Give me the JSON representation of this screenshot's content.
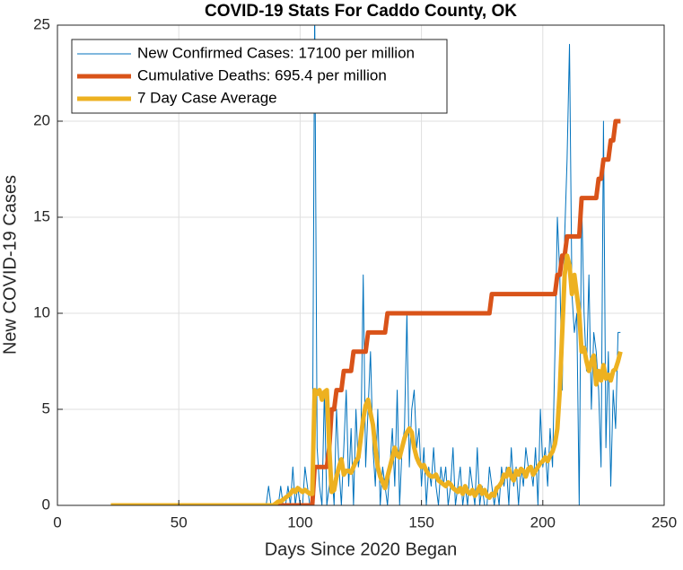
{
  "chart_data": {
    "type": "line",
    "title": "COVID-19 Stats For Caddo County, OK",
    "xlabel": "Days Since 2020 Began",
    "ylabel": "New COVID-19 Cases",
    "xlim": [
      0,
      250
    ],
    "xticks": [
      0,
      50,
      100,
      150,
      200,
      250
    ],
    "ylim": [
      0,
      25
    ],
    "yticks": [
      0,
      5,
      10,
      15,
      20,
      25
    ],
    "grid": true,
    "legend": "upper left",
    "x": [
      22,
      23,
      24,
      25,
      26,
      27,
      28,
      29,
      30,
      31,
      32,
      33,
      34,
      35,
      36,
      37,
      38,
      39,
      40,
      41,
      42,
      43,
      44,
      45,
      46,
      47,
      48,
      49,
      50,
      51,
      52,
      53,
      54,
      55,
      56,
      57,
      58,
      59,
      60,
      61,
      62,
      63,
      64,
      65,
      66,
      67,
      68,
      69,
      70,
      71,
      72,
      73,
      74,
      75,
      76,
      77,
      78,
      79,
      80,
      81,
      82,
      83,
      84,
      85,
      86,
      87,
      88,
      89,
      90,
      91,
      92,
      93,
      94,
      95,
      96,
      97,
      98,
      99,
      100,
      101,
      102,
      103,
      104,
      105,
      106,
      107,
      108,
      109,
      110,
      111,
      112,
      113,
      114,
      115,
      116,
      117,
      118,
      119,
      120,
      121,
      122,
      123,
      124,
      125,
      126,
      127,
      128,
      129,
      130,
      131,
      132,
      133,
      134,
      135,
      136,
      137,
      138,
      139,
      140,
      141,
      142,
      143,
      144,
      145,
      146,
      147,
      148,
      149,
      150,
      151,
      152,
      153,
      154,
      155,
      156,
      157,
      158,
      159,
      160,
      161,
      162,
      163,
      164,
      165,
      166,
      167,
      168,
      169,
      170,
      171,
      172,
      173,
      174,
      175,
      176,
      177,
      178,
      179,
      180,
      181,
      182,
      183,
      184,
      185,
      186,
      187,
      188,
      189,
      190,
      191,
      192,
      193,
      194,
      195,
      196,
      197,
      198,
      199,
      200,
      201,
      202,
      203,
      204,
      205,
      206,
      207,
      208,
      209,
      210,
      211,
      212,
      213,
      214,
      215,
      216,
      217,
      218,
      219,
      220,
      221,
      222,
      223,
      224,
      225,
      226,
      227,
      228,
      229,
      230,
      231,
      232
    ],
    "series": [
      {
        "name": "New Confirmed Cases: 17100 per million",
        "color": "#0072BD",
        "width": 1,
        "values": [
          0,
          0,
          0,
          0,
          0,
          0,
          0,
          0,
          0,
          0,
          0,
          0,
          0,
          0,
          0,
          0,
          0,
          0,
          0,
          0,
          0,
          0,
          0,
          0,
          0,
          0,
          0,
          0,
          0,
          0,
          0,
          0,
          0,
          0,
          0,
          0,
          0,
          0,
          0,
          0,
          0,
          0,
          0,
          0,
          0,
          0,
          0,
          0,
          0,
          0,
          0,
          0,
          0,
          0,
          0,
          0,
          0,
          0,
          0,
          0,
          0,
          0,
          0,
          0,
          0,
          1,
          0,
          0,
          0,
          0,
          1,
          0,
          0,
          1,
          0,
          2,
          0,
          1,
          0,
          0,
          2,
          1,
          0,
          0,
          26,
          3,
          1,
          0,
          6,
          0,
          1,
          2,
          0,
          5,
          2,
          0,
          3,
          6,
          1,
          4,
          0,
          5,
          2,
          3,
          12,
          2,
          5,
          8,
          3,
          1,
          5,
          0,
          2,
          1,
          0,
          2,
          4,
          1,
          6,
          0,
          3,
          4,
          10,
          2,
          5,
          6,
          3,
          4,
          1,
          3,
          0,
          2,
          1,
          3,
          1,
          0,
          2,
          1,
          2,
          0,
          1,
          3,
          0,
          1,
          2,
          0,
          1,
          0,
          2,
          1,
          0,
          3,
          0,
          1,
          0,
          0,
          2,
          1,
          0,
          1,
          0,
          2,
          1,
          2,
          0,
          3,
          1,
          2,
          0,
          2,
          1,
          3,
          2,
          2,
          1,
          3,
          0,
          5,
          2,
          3,
          1,
          4,
          2,
          8,
          15,
          12,
          6,
          14,
          18,
          24,
          11,
          9,
          10,
          0,
          16,
          10,
          7,
          12,
          5,
          9,
          8,
          6,
          2,
          20,
          3,
          8,
          1,
          6,
          4,
          9,
          9
        ]
      },
      {
        "name": "Cumulative Deaths: 695.4 per million",
        "color": "#D95319",
        "width": 5,
        "values": [
          0,
          0,
          0,
          0,
          0,
          0,
          0,
          0,
          0,
          0,
          0,
          0,
          0,
          0,
          0,
          0,
          0,
          0,
          0,
          0,
          0,
          0,
          0,
          0,
          0,
          0,
          0,
          0,
          0,
          0,
          0,
          0,
          0,
          0,
          0,
          0,
          0,
          0,
          0,
          0,
          0,
          0,
          0,
          0,
          0,
          0,
          0,
          0,
          0,
          0,
          0,
          0,
          0,
          0,
          0,
          0,
          0,
          0,
          0,
          0,
          0,
          0,
          0,
          0,
          0,
          0,
          0,
          0,
          0,
          0,
          0,
          0,
          0,
          0,
          0,
          0,
          0,
          0,
          0,
          0,
          0,
          0,
          0,
          0,
          2,
          2,
          2,
          2,
          2,
          2,
          3,
          5,
          5,
          6,
          6,
          6,
          7,
          7,
          7,
          7,
          8,
          8,
          8,
          8,
          8,
          8,
          9,
          9,
          9,
          9,
          9,
          9,
          9,
          9,
          10,
          10,
          10,
          10,
          10,
          10,
          10,
          10,
          10,
          10,
          10,
          10,
          10,
          10,
          10,
          10,
          10,
          10,
          10,
          10,
          10,
          10,
          10,
          10,
          10,
          10,
          10,
          10,
          10,
          10,
          10,
          10,
          10,
          10,
          10,
          10,
          10,
          10,
          10,
          10,
          10,
          10,
          10,
          11,
          11,
          11,
          11,
          11,
          11,
          11,
          11,
          11,
          11,
          11,
          11,
          11,
          11,
          11,
          11,
          11,
          11,
          11,
          11,
          11,
          11,
          11,
          11,
          11,
          11,
          11,
          12,
          12,
          13,
          13,
          14,
          14,
          14,
          14,
          14,
          14,
          16,
          16,
          16,
          16,
          16,
          16,
          16,
          17,
          17,
          18,
          18,
          18,
          19,
          19,
          20,
          20,
          20
        ]
      },
      {
        "name": "7 Day Case Average",
        "color": "#EDB120",
        "width": 5,
        "values": [
          0,
          0,
          0,
          0,
          0,
          0,
          0,
          0,
          0,
          0,
          0,
          0,
          0,
          0,
          0,
          0,
          0,
          0,
          0,
          0,
          0,
          0,
          0,
          0,
          0,
          0,
          0,
          0,
          0,
          0,
          0,
          0,
          0,
          0,
          0,
          0,
          0,
          0,
          0,
          0,
          0,
          0,
          0,
          0,
          0,
          0,
          0,
          0,
          0,
          0,
          0,
          0,
          0,
          0,
          0,
          0,
          0,
          0,
          0,
          0,
          0,
          0,
          0,
          0,
          0,
          0,
          0,
          0,
          0.1,
          0.2,
          0.2,
          0.3,
          0.4,
          0.5,
          0.6,
          0.8,
          0.7,
          0.9,
          0.8,
          0.7,
          0.8,
          0.7,
          0.6,
          0.6,
          6,
          5.8,
          6,
          5.5,
          5.9,
          6,
          3,
          0.7,
          0.8,
          1.5,
          2,
          2.4,
          1.6,
          1.8,
          1.8,
          1.7,
          2,
          2.3,
          2.5,
          3.5,
          4.5,
          5.2,
          5.5,
          4.8,
          4.2,
          3,
          2,
          1.5,
          1.2,
          0.9,
          1.5,
          2,
          2.5,
          3,
          2.6,
          2.5,
          3,
          3.5,
          3.8,
          4,
          3.8,
          3,
          2.5,
          2.2,
          2,
          2.1,
          1.8,
          1.6,
          1.5,
          1.5,
          1.6,
          1.3,
          1.2,
          1.1,
          1,
          1.2,
          1.1,
          0.9,
          0.8,
          0.7,
          0.9,
          0.6,
          1,
          0.7,
          0.6,
          0.8,
          0.5,
          0.7,
          1,
          0.6,
          0.8,
          0.5,
          0.4,
          0.6,
          0.5,
          0.9,
          1,
          1.2,
          1.6,
          1.5,
          1.9,
          1.5,
          1.3,
          1.8,
          1.6,
          1.9,
          1.8,
          1.5,
          1.9,
          2,
          1.6,
          1.8,
          2,
          2.2,
          2.3,
          2.5,
          2.3,
          2.6,
          2.8,
          3.2,
          4,
          6,
          9,
          12,
          13,
          12.5,
          11,
          12,
          11,
          10,
          8,
          8.2,
          7.5,
          7,
          7.5,
          7.8,
          6.3,
          7,
          6.5,
          7.3,
          6.6,
          6.8,
          6.5,
          7,
          7.1,
          7.5,
          8
        ]
      }
    ]
  }
}
